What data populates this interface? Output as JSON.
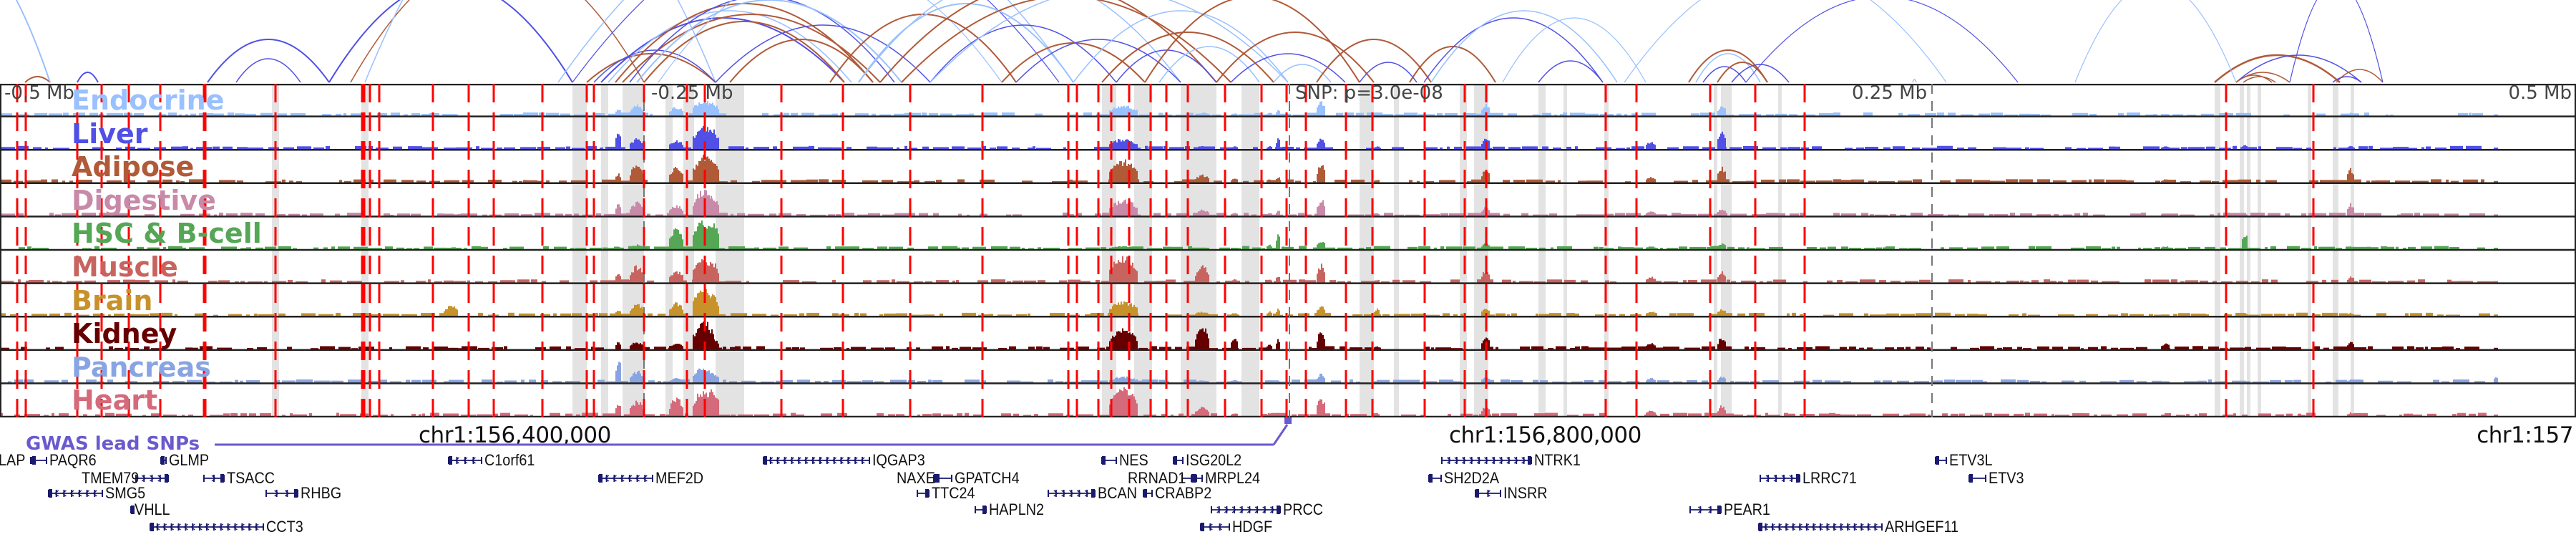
{
  "tracks": [
    {
      "label": "Endocrine",
      "color": "#99c0ff"
    },
    {
      "label": "Liver",
      "color": "#5050e6"
    },
    {
      "label": "Adipose",
      "color": "#b05a38"
    },
    {
      "label": "Digestive",
      "color": "#c88aa8"
    },
    {
      "label": "HSC & B-cell",
      "color": "#55a655"
    },
    {
      "label": "Muscle",
      "color": "#c86460"
    },
    {
      "label": "Brain",
      "color": "#c8922a"
    },
    {
      "label": "Kidney",
      "color": "#660000"
    },
    {
      "label": "Pancreas",
      "color": "#88a4e2"
    },
    {
      "label": "Heart",
      "color": "#d46a7a"
    }
  ],
  "axis": {
    "left": "-0.5 Mb",
    "mid_left": "-0.25 Mb",
    "snp": "SNP: p=3.0e-08",
    "mid_right": "0.25 Mb",
    "right": "0.5 Mb"
  },
  "coordinates": {
    "c1": "chr1:156,400,000",
    "c2": "chr1:156,800,000",
    "c3": "chr1:157"
  },
  "gwas": {
    "label": "GWAS lead SNPs",
    "color": "#6a5acd"
  },
  "colors": {
    "arc_light": "#99c0ff",
    "arc_blue": "#5050e6",
    "arc_brown": "#b05a38",
    "anchor_red": "#ff0000",
    "highlight": "#e3e3e3",
    "gene": "#1a1a6e"
  },
  "genes": [
    {
      "name": "LAP",
      "strand": "-"
    },
    {
      "name": "PAQR6",
      "strand": "-"
    },
    {
      "name": "GLMP",
      "strand": "-"
    },
    {
      "name": "TMEM79",
      "strand": "+"
    },
    {
      "name": "SMG5",
      "strand": "-"
    },
    {
      "name": "TSACC",
      "strand": "+"
    },
    {
      "name": "RHBG",
      "strand": "+"
    },
    {
      "name": "VHLL",
      "strand": "-"
    },
    {
      "name": "CCT3",
      "strand": "-"
    },
    {
      "name": "C1orf61",
      "strand": "-"
    },
    {
      "name": "MEF2D",
      "strand": "-"
    },
    {
      "name": "IQGAP3",
      "strand": "-"
    },
    {
      "name": "NAXE",
      "strand": "+"
    },
    {
      "name": "GPATCH4",
      "strand": "-"
    },
    {
      "name": "TTC24",
      "strand": "+"
    },
    {
      "name": "BCAN",
      "strand": "+"
    },
    {
      "name": "HAPLN2",
      "strand": "+"
    },
    {
      "name": "NES",
      "strand": "-"
    },
    {
      "name": "ISG20L2",
      "strand": "-"
    },
    {
      "name": "RRNAD1",
      "strand": "+"
    },
    {
      "name": "MRPL24",
      "strand": "-"
    },
    {
      "name": "CRABP2",
      "strand": "-"
    },
    {
      "name": "PRCC",
      "strand": "+"
    },
    {
      "name": "HDGF",
      "strand": "-"
    },
    {
      "name": "NTRK1",
      "strand": "+"
    },
    {
      "name": "SH2D2A",
      "strand": "-"
    },
    {
      "name": "INSRR",
      "strand": "-"
    },
    {
      "name": "PEAR1",
      "strand": "+"
    },
    {
      "name": "LRRC71",
      "strand": "+"
    },
    {
      "name": "ARHGEF11",
      "strand": "-"
    },
    {
      "name": "ETV3L",
      "strand": "-"
    },
    {
      "name": "ETV3",
      "strand": "-"
    }
  ]
}
